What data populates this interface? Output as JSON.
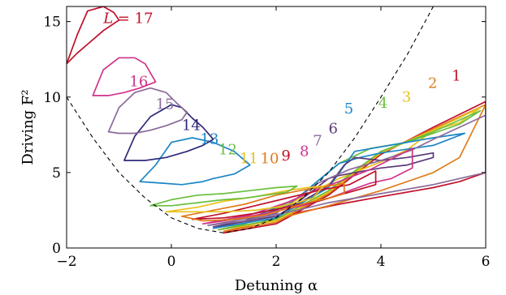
{
  "chart_data": {
    "type": "line",
    "xlabel": "Detuning α",
    "ylabel": "Driving F²",
    "xlim": [
      -2,
      6
    ],
    "ylim": [
      0,
      16
    ],
    "x_ticks": [
      "−2",
      "0",
      "2",
      "4",
      "6"
    ],
    "y_ticks": [
      "0",
      "5",
      "10",
      "15"
    ],
    "grid": false,
    "dashed_boundary": {
      "x": [
        -2.0,
        -1.5,
        -1.0,
        -0.5,
        0.0,
        0.5,
        1.0,
        1.5,
        2.0,
        2.5,
        3.0,
        3.5,
        4.0,
        4.5,
        5.0
      ],
      "y": [
        10.0,
        7.3,
        5.0,
        3.3,
        2.0,
        1.3,
        1.0,
        1.3,
        2.0,
        3.3,
        5.0,
        7.3,
        10.0,
        12.8,
        16.0
      ]
    },
    "series": [
      {
        "name": "1",
        "label_at": [
          5.35,
          11.1
        ],
        "color": "#c0102a",
        "x": [
          1.0,
          2.0,
          3.0,
          4.0,
          5.0,
          6.0,
          6.0,
          5.5,
          5.0,
          4.0,
          3.2,
          2.5,
          2.0,
          1.5,
          1.0
        ],
        "y": [
          1.0,
          1.6,
          3.5,
          6.2,
          8.0,
          9.7,
          5.0,
          4.4,
          4.0,
          3.4,
          2.9,
          2.4,
          2.0,
          1.5,
          1.0
        ]
      },
      {
        "name": "2",
        "label_at": [
          4.9,
          10.6
        ],
        "color": "#e07a1a",
        "x": [
          1.0,
          2.0,
          3.0,
          4.0,
          5.0,
          6.0,
          5.5,
          5.0,
          4.0,
          3.0,
          2.0,
          1.0
        ],
        "y": [
          1.1,
          1.7,
          3.6,
          6.3,
          7.9,
          9.5,
          6.0,
          5.0,
          3.8,
          2.8,
          1.9,
          1.1
        ]
      },
      {
        "name": "3",
        "label_at": [
          4.4,
          9.7
        ],
        "color": "#e8c21c",
        "x": [
          0.9,
          2.0,
          3.0,
          4.0,
          5.0,
          5.9,
          5.5,
          5.0,
          4.5,
          4.0,
          3.2,
          2.3,
          1.4,
          0.9
        ],
        "y": [
          1.2,
          1.8,
          3.7,
          6.3,
          7.8,
          9.3,
          8.3,
          7.8,
          6.5,
          5.7,
          4.6,
          3.0,
          1.6,
          1.2
        ]
      },
      {
        "name": "4",
        "label_at": [
          3.95,
          9.3
        ],
        "color": "#6abf3e",
        "x": [
          0.9,
          2.0,
          3.0,
          4.0,
          5.0,
          5.9,
          5.5,
          5.0,
          4.5,
          3.8,
          3.2,
          2.4,
          1.4,
          0.9
        ],
        "y": [
          1.2,
          1.9,
          3.8,
          6.4,
          7.7,
          9.1,
          8.2,
          7.6,
          7.0,
          6.6,
          5.6,
          3.3,
          1.6,
          1.2
        ]
      },
      {
        "name": "5",
        "label_at": [
          3.3,
          8.9
        ],
        "color": "#1a86c6",
        "x": [
          0.8,
          2.0,
          3.0,
          3.5,
          4.0,
          5.0,
          5.6,
          5.0,
          4.0,
          3.6,
          3.2,
          2.4,
          1.4,
          0.8
        ],
        "y": [
          1.3,
          2.0,
          4.0,
          6.4,
          6.7,
          7.3,
          7.6,
          6.8,
          6.3,
          6.0,
          5.6,
          3.3,
          1.8,
          1.3
        ]
      },
      {
        "name": "6",
        "label_at": [
          3.0,
          7.6
        ],
        "color": "#5a3a7a",
        "x": [
          0.8,
          2.0,
          3.0,
          3.3,
          3.5,
          4.0,
          4.5,
          5.0,
          5.0,
          4.5,
          4.0,
          3.5,
          3.2,
          3.0,
          2.4,
          1.4,
          0.8
        ],
        "y": [
          1.4,
          2.1,
          4.1,
          5.5,
          6.0,
          5.8,
          6.0,
          6.3,
          6.0,
          5.5,
          5.3,
          5.0,
          4.8,
          4.6,
          3.0,
          1.8,
          1.4
        ]
      },
      {
        "name": "7",
        "label_at": [
          2.7,
          6.8
        ],
        "color": "#8a6a9a",
        "x": [
          0.7,
          2.0,
          2.8,
          3.2,
          3.4,
          4.0,
          4.6,
          5.0,
          5.5,
          6.0,
          6.0,
          5.5,
          5.0,
          4.5,
          4.0,
          3.5,
          3.0,
          2.4,
          1.4,
          0.7
        ],
        "y": [
          1.5,
          2.3,
          4.3,
          4.9,
          5.2,
          5.8,
          6.5,
          7.2,
          8.0,
          8.8,
          5.0,
          4.6,
          4.2,
          3.9,
          3.6,
          3.3,
          3.0,
          2.5,
          1.8,
          1.5
        ]
      },
      {
        "name": "8",
        "label_at": [
          2.45,
          6.1
        ],
        "color": "#d0338a",
        "x": [
          0.6,
          1.5,
          2.2,
          2.8,
          3.2,
          3.8,
          4.6,
          4.6,
          4.2,
          3.8,
          3.4,
          3.0,
          2.5,
          1.8,
          1.0,
          0.6
        ],
        "y": [
          1.6,
          2.2,
          3.0,
          3.9,
          4.4,
          5.2,
          6.6,
          5.3,
          4.6,
          4.3,
          3.8,
          3.3,
          2.8,
          2.3,
          1.8,
          1.6
        ]
      },
      {
        "name": "9",
        "label_at": [
          2.1,
          5.8
        ],
        "color": "#c0102a",
        "x": [
          0.4,
          1.0,
          1.6,
          2.2,
          2.8,
          3.4,
          3.9,
          3.9,
          3.6,
          3.2,
          2.8,
          2.2,
          1.6,
          1.0,
          0.4
        ],
        "y": [
          1.9,
          2.3,
          2.8,
          3.3,
          3.8,
          4.2,
          5.1,
          4.2,
          3.9,
          3.5,
          3.1,
          2.7,
          2.3,
          2.0,
          1.9
        ]
      },
      {
        "name": "10",
        "label_at": [
          1.7,
          5.6
        ],
        "color": "#e07a1a",
        "x": [
          0.2,
          0.8,
          1.4,
          2.0,
          2.6,
          3.0,
          3.3,
          3.3,
          3.0,
          2.6,
          2.2,
          1.8,
          1.2,
          0.6,
          0.2
        ],
        "y": [
          2.1,
          2.5,
          2.9,
          3.5,
          3.9,
          4.1,
          4.3,
          3.6,
          3.3,
          3.0,
          2.6,
          2.2,
          1.9,
          1.8,
          2.1
        ]
      },
      {
        "name": "11",
        "label_at": [
          1.3,
          5.6
        ],
        "color": "#e8c21c",
        "x": [
          -0.1,
          0.5,
          1.0,
          1.6,
          2.2,
          2.6,
          2.9,
          2.7,
          2.4,
          2.0,
          1.6,
          1.0,
          0.5,
          -0.1
        ],
        "y": [
          2.4,
          2.7,
          3.1,
          3.4,
          3.8,
          4.0,
          4.1,
          3.3,
          3.0,
          2.7,
          2.5,
          2.4,
          2.4,
          2.4
        ]
      },
      {
        "name": "12",
        "label_at": [
          0.9,
          6.2
        ],
        "color": "#6abf3e",
        "x": [
          -0.4,
          0.0,
          0.5,
          1.0,
          1.5,
          2.0,
          2.4,
          2.2,
          1.8,
          1.4,
          1.0,
          0.5,
          0.0,
          -0.4
        ],
        "y": [
          2.8,
          3.2,
          3.5,
          3.6,
          3.8,
          4.0,
          4.1,
          3.7,
          3.5,
          3.3,
          3.2,
          3.0,
          2.8,
          2.8
        ]
      },
      {
        "name": "13",
        "label_at": [
          0.55,
          6.9
        ],
        "color": "#1a86c6",
        "x": [
          -0.6,
          -0.3,
          0.0,
          0.4,
          0.8,
          1.2,
          1.5,
          1.2,
          0.8,
          0.6,
          0.2,
          -0.2,
          -0.6
        ],
        "y": [
          4.4,
          5.5,
          7.0,
          7.3,
          7.0,
          6.4,
          5.5,
          4.9,
          4.6,
          4.4,
          4.2,
          4.3,
          4.4
        ]
      },
      {
        "name": "14",
        "label_at": [
          0.2,
          7.8
        ],
        "color": "#2e2a7a",
        "x": [
          -0.9,
          -0.7,
          -0.4,
          0.0,
          0.2,
          0.4,
          0.6,
          0.8,
          0.6,
          0.3,
          -0.1,
          -0.5,
          -0.9
        ],
        "y": [
          5.8,
          7.4,
          8.7,
          9.5,
          9.3,
          8.6,
          8.0,
          7.2,
          6.8,
          6.4,
          6.0,
          5.8,
          5.8
        ]
      },
      {
        "name": "15",
        "label_at": [
          -0.3,
          9.2
        ],
        "color": "#8a6a9a",
        "x": [
          -1.2,
          -1.0,
          -0.7,
          -0.4,
          -0.1,
          0.1,
          0.3,
          0.2,
          -0.1,
          -0.4,
          -0.7,
          -1.0,
          -1.2
        ],
        "y": [
          7.7,
          9.3,
          10.3,
          10.6,
          10.3,
          9.6,
          9.0,
          8.5,
          8.1,
          7.8,
          7.6,
          7.6,
          7.7
        ]
      },
      {
        "name": "16",
        "label_at": [
          -0.8,
          10.7
        ],
        "color": "#d0338a",
        "x": [
          -1.5,
          -1.3,
          -1.0,
          -0.7,
          -0.5,
          -0.4,
          -0.3,
          -0.6,
          -0.9,
          -1.2,
          -1.5
        ],
        "y": [
          10.1,
          11.8,
          12.6,
          12.6,
          12.2,
          11.6,
          11.0,
          10.6,
          10.3,
          10.1,
          10.1
        ]
      },
      {
        "name": "17",
        "label_at": [
          -1.3,
          14.9
        ],
        "color": "#c0102a",
        "x": [
          -2.0,
          -1.8,
          -1.6,
          -1.3,
          -1.1,
          -1.0,
          -1.3,
          -1.6,
          -1.8,
          -2.0
        ],
        "y": [
          12.2,
          14.1,
          15.7,
          16.0,
          15.6,
          15.1,
          14.4,
          13.5,
          12.9,
          12.2
        ]
      }
    ],
    "label_prefix_17": "L = "
  }
}
